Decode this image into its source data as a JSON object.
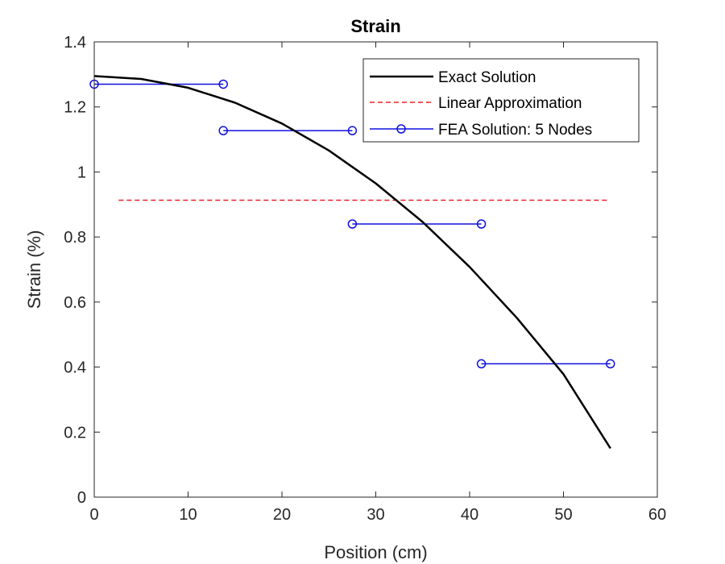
{
  "chart_data": {
    "type": "line",
    "title": "Strain",
    "xlabel": "Position (cm)",
    "ylabel": "Strain (%)",
    "xlim": [
      0,
      60
    ],
    "ylim": [
      0,
      1.4
    ],
    "xticks": [
      "0",
      "10",
      "20",
      "30",
      "40",
      "50",
      "60"
    ],
    "yticks": [
      "0",
      "0.2",
      "0.4",
      "0.6",
      "0.8",
      "1",
      "1.2",
      "1.4"
    ],
    "grid": false,
    "legend_position": "top-right",
    "series": [
      {
        "name": "Exact Solution",
        "style": "solid",
        "color": "#000000",
        "x": [
          0,
          5,
          10,
          15,
          20,
          25,
          30,
          35,
          40,
          45,
          50,
          55
        ],
        "y": [
          1.295,
          1.286,
          1.259,
          1.213,
          1.149,
          1.066,
          0.965,
          0.846,
          0.708,
          0.552,
          0.378,
          0.15
        ]
      },
      {
        "name": "Linear Approximation",
        "style": "dashed",
        "color": "#e8202a",
        "x": [
          2.6,
          54.8
        ],
        "y": [
          0.913,
          0.913
        ]
      },
      {
        "name": "FEA Solution: 5 Nodes",
        "style": "solid-circle-markers",
        "color": "#1010e0",
        "segments": [
          {
            "x": [
              0,
              13.75
            ],
            "y": [
              1.27,
              1.27
            ]
          },
          {
            "x": [
              13.75,
              27.5
            ],
            "y": [
              1.127,
              1.127
            ]
          },
          {
            "x": [
              27.5,
              41.25
            ],
            "y": [
              0.84,
              0.84
            ]
          },
          {
            "x": [
              41.25,
              55
            ],
            "y": [
              0.41,
              0.41
            ]
          }
        ]
      }
    ]
  }
}
